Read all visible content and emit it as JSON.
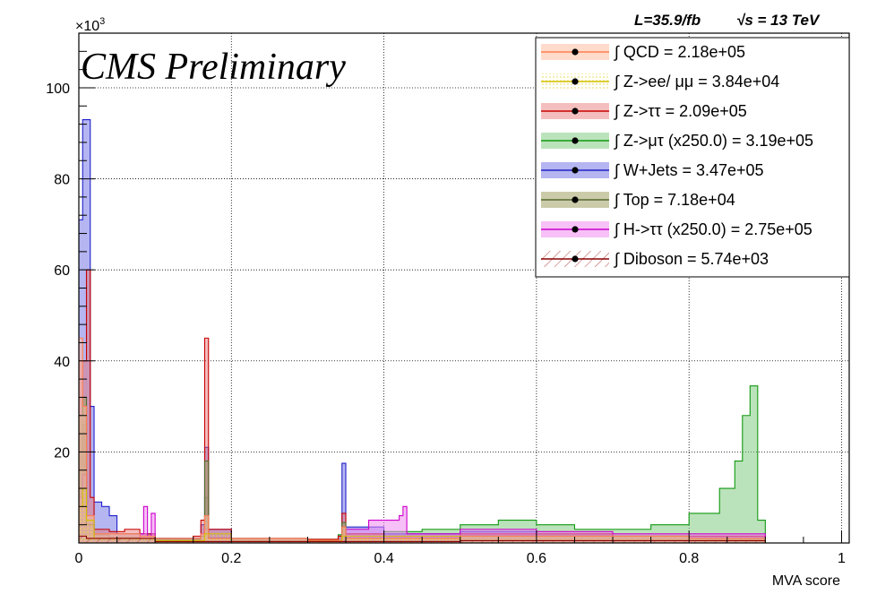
{
  "header": {
    "lumi_label": "L=35.9/fb",
    "energy_label": "√s = 13 TeV",
    "experiment_label": "CMS Preliminary",
    "exponent_label": "×10",
    "exponent_power": "3"
  },
  "chart_data": {
    "type": "histogram",
    "xlabel": "MVA score",
    "ylabel": "",
    "xlim": [
      0,
      1.01
    ],
    "ylim": [
      0,
      112
    ],
    "x_ticks": [
      0,
      0.2,
      0.4,
      0.6,
      0.8,
      1
    ],
    "y_ticks": [
      20,
      40,
      60,
      80,
      100
    ],
    "grid": true,
    "legend_position": "top-right",
    "legend": [
      {
        "label": "∫ QCD = 2.18e+05",
        "color": "#ff7f50",
        "fill": "rgba(255,190,160,0.55)"
      },
      {
        "label": "∫ Z->ee/ μμ = 3.84e+04",
        "color": "#d4c000",
        "fill": "rgba(250,240,120,0.30)"
      },
      {
        "label": "∫ Z->ττ = 2.09e+05",
        "color": "#c80000",
        "fill": "rgba(230,110,110,0.45)"
      },
      {
        "label": "∫ Z->μτ (x250.0) = 3.19e+05",
        "color": "#119911",
        "fill": "rgba(120,200,120,0.50)"
      },
      {
        "label": "∫ W+Jets = 3.47e+05",
        "color": "#2222cc",
        "fill": "rgba(120,120,230,0.55)"
      },
      {
        "label": "∫ Top = 7.18e+04",
        "color": "#556b2f",
        "fill": "rgba(160,160,100,0.55)"
      },
      {
        "label": "∫ H->ττ (x250.0) = 2.75e+05",
        "color": "#cc00cc",
        "fill": "rgba(240,140,240,0.55)"
      },
      {
        "label": "∫ Diboson = 5.74e+03",
        "color": "#8b0000",
        "fill": "rgba(200,120,120,0.20)"
      }
    ],
    "series": [
      {
        "name": "Z->μτ (x250.0)",
        "points": [
          [
            0,
            20
          ],
          [
            0.005,
            26
          ],
          [
            0.01,
            5
          ],
          [
            0.02,
            1.8
          ],
          [
            0.04,
            1.2
          ],
          [
            0.06,
            1.2
          ],
          [
            0.08,
            1.4
          ],
          [
            0.1,
            1.0
          ],
          [
            0.12,
            0.8
          ],
          [
            0.14,
            0.8
          ],
          [
            0.16,
            1.5
          ],
          [
            0.165,
            10
          ],
          [
            0.17,
            1.0
          ],
          [
            0.2,
            0.8
          ],
          [
            0.25,
            0.6
          ],
          [
            0.3,
            0.8
          ],
          [
            0.34,
            1.8
          ],
          [
            0.345,
            3.5
          ],
          [
            0.35,
            2.0
          ],
          [
            0.4,
            2.5
          ],
          [
            0.45,
            3.0
          ],
          [
            0.5,
            4.0
          ],
          [
            0.55,
            5.0
          ],
          [
            0.6,
            4.0
          ],
          [
            0.65,
            3.0
          ],
          [
            0.7,
            3.0
          ],
          [
            0.75,
            4.0
          ],
          [
            0.8,
            6.5
          ],
          [
            0.84,
            12
          ],
          [
            0.86,
            18
          ],
          [
            0.87,
            28
          ],
          [
            0.88,
            34.5
          ],
          [
            0.89,
            5.0
          ],
          [
            0.9,
            0
          ]
        ]
      },
      {
        "name": "W+Jets",
        "points": [
          [
            0,
            71
          ],
          [
            0.005,
            93
          ],
          [
            0.015,
            30
          ],
          [
            0.02,
            9
          ],
          [
            0.03,
            8
          ],
          [
            0.04,
            6
          ],
          [
            0.05,
            2
          ],
          [
            0.08,
            2
          ],
          [
            0.1,
            1
          ],
          [
            0.15,
            1
          ],
          [
            0.16,
            4
          ],
          [
            0.165,
            21
          ],
          [
            0.17,
            3
          ],
          [
            0.2,
            0.5
          ],
          [
            0.3,
            0.7
          ],
          [
            0.34,
            1.5
          ],
          [
            0.345,
            17.5
          ],
          [
            0.35,
            3.5
          ],
          [
            0.4,
            2.0
          ],
          [
            0.5,
            2.5
          ],
          [
            0.6,
            2.0
          ],
          [
            0.7,
            1.5
          ],
          [
            0.8,
            1.5
          ],
          [
            0.9,
            0
          ]
        ]
      },
      {
        "name": "Z->ττ",
        "points": [
          [
            0,
            40
          ],
          [
            0.01,
            60
          ],
          [
            0.015,
            10
          ],
          [
            0.02,
            3
          ],
          [
            0.04,
            2.5
          ],
          [
            0.06,
            3.0
          ],
          [
            0.08,
            2.0
          ],
          [
            0.1,
            1.0
          ],
          [
            0.15,
            1.5
          ],
          [
            0.16,
            5.0
          ],
          [
            0.165,
            45
          ],
          [
            0.17,
            3.0
          ],
          [
            0.2,
            1.0
          ],
          [
            0.3,
            0.8
          ],
          [
            0.34,
            1.5
          ],
          [
            0.345,
            6.5
          ],
          [
            0.35,
            2.0
          ],
          [
            0.4,
            1.5
          ],
          [
            0.5,
            2.0
          ],
          [
            0.6,
            2.0
          ],
          [
            0.7,
            1.5
          ],
          [
            0.8,
            1.5
          ],
          [
            0.9,
            0
          ]
        ]
      },
      {
        "name": "H->ττ (x250.0)",
        "points": [
          [
            0,
            10
          ],
          [
            0.005,
            15
          ],
          [
            0.01,
            4
          ],
          [
            0.02,
            1.0
          ],
          [
            0.08,
            2.0
          ],
          [
            0.085,
            8.0
          ],
          [
            0.09,
            1.5
          ],
          [
            0.095,
            6.5
          ],
          [
            0.1,
            1.0
          ],
          [
            0.16,
            2.0
          ],
          [
            0.165,
            3.0
          ],
          [
            0.17,
            1.0
          ],
          [
            0.3,
            0.5
          ],
          [
            0.35,
            3.0
          ],
          [
            0.38,
            5.0
          ],
          [
            0.42,
            6.0
          ],
          [
            0.425,
            8.0
          ],
          [
            0.43,
            2.0
          ],
          [
            0.5,
            3.0
          ],
          [
            0.6,
            2.5
          ],
          [
            0.7,
            2.0
          ],
          [
            0.8,
            2.0
          ],
          [
            0.9,
            0
          ]
        ]
      },
      {
        "name": "Top",
        "points": [
          [
            0,
            28
          ],
          [
            0.005,
            32
          ],
          [
            0.01,
            4
          ],
          [
            0.02,
            1.0
          ],
          [
            0.1,
            0.8
          ],
          [
            0.16,
            1.5
          ],
          [
            0.165,
            18
          ],
          [
            0.17,
            1.0
          ],
          [
            0.3,
            0.5
          ],
          [
            0.345,
            4.5
          ],
          [
            0.35,
            1.0
          ],
          [
            0.5,
            1.5
          ],
          [
            0.6,
            1.5
          ],
          [
            0.8,
            1.0
          ],
          [
            0.9,
            0
          ]
        ]
      },
      {
        "name": "QCD",
        "points": [
          [
            0,
            45
          ],
          [
            0.005,
            30
          ],
          [
            0.01,
            6
          ],
          [
            0.02,
            2.0
          ],
          [
            0.04,
            2.0
          ],
          [
            0.08,
            1.5
          ],
          [
            0.1,
            1.0
          ],
          [
            0.16,
            2.0
          ],
          [
            0.165,
            6.0
          ],
          [
            0.17,
            1.0
          ],
          [
            0.3,
            0.6
          ],
          [
            0.345,
            3.5
          ],
          [
            0.35,
            1.0
          ],
          [
            0.5,
            1.5
          ],
          [
            0.6,
            1.5
          ],
          [
            0.8,
            1.0
          ],
          [
            0.9,
            0
          ]
        ]
      },
      {
        "name": "Z->ee/ μμ",
        "points": [
          [
            0,
            8
          ],
          [
            0.005,
            12
          ],
          [
            0.01,
            5
          ],
          [
            0.02,
            1.0
          ],
          [
            0.1,
            0.5
          ],
          [
            0.165,
            2.0
          ],
          [
            0.2,
            0.3
          ],
          [
            0.345,
            1.5
          ],
          [
            0.5,
            0.5
          ],
          [
            0.9,
            0
          ]
        ]
      },
      {
        "name": "Diboson",
        "points": [
          [
            0,
            1.5
          ],
          [
            0.01,
            1.0
          ],
          [
            0.1,
            0.3
          ],
          [
            0.5,
            0.5
          ],
          [
            0.9,
            0
          ]
        ]
      }
    ]
  }
}
